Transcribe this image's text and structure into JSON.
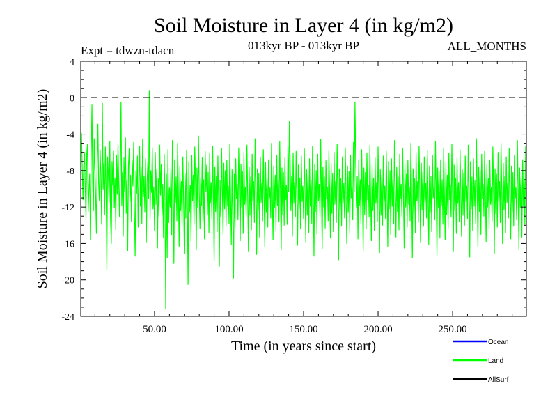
{
  "chart_data": {
    "type": "line",
    "title": "Soil Moisture in Layer 4 (in kg/m2)",
    "subtitle_left": "Expt = tdwzn-tdacn",
    "subtitle_center": "013kyr BP - 013kyr BP",
    "subtitle_right": "ALL_MONTHS",
    "xlabel": "Time (in years since start)",
    "ylabel": "Soil Moisture in Layer 4 (in kg/m2)",
    "xlim": [
      0.5,
      299.5
    ],
    "ylim": [
      -24,
      4
    ],
    "x_ticks": [
      50,
      100,
      150,
      200,
      250
    ],
    "x_tick_labels": [
      "50.00",
      "100.00",
      "150.00",
      "200.00",
      "250.00"
    ],
    "y_ticks": [
      4,
      0,
      -4,
      -8,
      -12,
      -16,
      -20,
      -24
    ],
    "y_tick_labels": [
      "4",
      "0",
      "-4",
      "-8",
      "-12",
      "-16",
      "-20",
      "-24"
    ],
    "reference_line": 0,
    "series": [
      {
        "name": "Land",
        "color": "#00ff00",
        "x_start": 0.5,
        "x_step": 0.5,
        "values": [
          -3.6,
          -4.0,
          -7.9,
          -11.2,
          -7.5,
          -6.0,
          -9.8,
          -13.2,
          -6.2,
          -5.1,
          -12.5,
          -10.0,
          -8.4,
          -15.6,
          -6.1,
          -0.8,
          -9.2,
          -12.4,
          -4.5,
          -7.8,
          -10.8,
          -14.9,
          -6.8,
          -2.9,
          -9.5,
          -11.3,
          -5.8,
          -8.7,
          -13.9,
          -0.6,
          -10.1,
          -7.2,
          -12.8,
          -5.4,
          -9.9,
          -18.9,
          -6.5,
          -8.3,
          -11.6,
          -4.8,
          -13.4,
          -16.0,
          -7.0,
          -9.6,
          -5.9,
          -12.1,
          -8.8,
          -14.5,
          -6.3,
          -10.6,
          -5.1,
          -9.4,
          -13.1,
          -7.7,
          -0.5,
          -11.8,
          -8.2,
          -15.2,
          -6.6,
          -10.3,
          -4.4,
          -12.7,
          -9.0,
          -16.8,
          -7.4,
          -5.6,
          -11.4,
          -8.5,
          -13.6,
          -6.9,
          -9.7,
          -4.9,
          -12.3,
          -17.4,
          -8.1,
          -10.5,
          -6.4,
          -14.2,
          -9.1,
          -5.3,
          -11.9,
          -7.6,
          -13.8,
          -4.6,
          -10.9,
          -8.6,
          -12.6,
          -6.7,
          -15.9,
          -9.3,
          -7.1,
          -11.1,
          0.8,
          -13.3,
          -8.0,
          -10.4,
          -5.5,
          -12.2,
          -9.8,
          -14.6,
          -6.0,
          -11.7,
          -7.9,
          -16.5,
          -8.9,
          -13.0,
          -5.2,
          -10.7,
          -7.3,
          -12.9,
          -9.5,
          -15.4,
          -6.2,
          -11.2,
          -23.2,
          -8.4,
          -17.6,
          -5.7,
          -13.7,
          -9.9,
          -12.0,
          -7.8,
          -15.1,
          -4.7,
          -10.0,
          -18.2,
          -6.8,
          -11.5,
          -8.7,
          -13.5,
          -5.0,
          -10.2,
          -16.3,
          -7.5,
          -12.4,
          -9.2,
          -14.0,
          -6.5,
          -11.0,
          -17.1,
          -8.3,
          -13.2,
          -5.8,
          -10.8,
          -20.5,
          -7.0,
          -12.6,
          -9.6,
          -15.8,
          -6.3,
          -11.3,
          -8.5,
          -13.9,
          -5.4,
          -9.4,
          -16.7,
          -7.7,
          -12.1,
          -4.2,
          -10.6,
          -14.4,
          -8.8,
          -11.8,
          -6.6,
          -13.6,
          -9.0,
          -15.5,
          -5.9,
          -10.3,
          -7.4,
          -12.8,
          -8.2,
          -14.8,
          -6.1,
          -11.6,
          -9.3,
          -13.3,
          -5.3,
          -10.9,
          -17.9,
          -7.6,
          -12.5,
          -8.6,
          -14.7,
          -6.4,
          -11.4,
          -18.5,
          -9.1,
          -13.1,
          -5.6,
          -10.1,
          -15.0,
          -7.2,
          -12.2,
          -8.0,
          -14.1,
          -6.9,
          -11.9,
          -9.7,
          -13.8,
          -5.1,
          -10.5,
          -16.1,
          -7.9,
          -12.7,
          -19.8,
          -8.4,
          -14.3,
          -6.7,
          -11.1,
          -9.5,
          -13.4,
          -5.5,
          -10.4,
          -15.7,
          -7.3,
          -12.0,
          -8.1,
          -14.9,
          -6.0,
          -11.7,
          -9.8,
          -13.0,
          -5.2,
          -10.7,
          -16.9,
          -7.6,
          -12.9,
          -8.7,
          -14.5,
          -6.2,
          -11.3,
          -9.2,
          -13.7,
          -4.5,
          -10.0,
          -17.2,
          -7.8,
          -12.3,
          -8.3,
          -15.3,
          -6.5,
          -11.5,
          -9.4,
          -13.5,
          -5.7,
          -10.8,
          -16.4,
          -7.1,
          -12.6,
          -8.9,
          -14.2,
          -6.8,
          -11.0,
          -9.9,
          -13.2,
          -5.0,
          -10.2,
          -15.6,
          -7.5,
          -12.1,
          -8.5,
          -14.6,
          -6.3,
          -11.8,
          -9.0,
          -13.6,
          -4.8,
          -10.6,
          -16.7,
          -7.7,
          -12.8,
          -8.2,
          -14.0,
          -6.6,
          -11.2,
          -9.6,
          -13.9,
          -5.4,
          -10.3,
          -2.6,
          -7.0,
          -12.4,
          -8.6,
          -15.2,
          -6.1,
          -11.6,
          -9.3,
          -13.1,
          -5.9,
          -10.9,
          -16.2,
          -7.4,
          -12.2,
          -8.8,
          -14.4,
          -6.4,
          -11.4,
          -9.7,
          -13.3,
          -5.6,
          -10.5,
          -15.9,
          -7.9,
          -12.9,
          -8.4,
          -14.8,
          -6.7,
          -11.9,
          -9.1,
          -13.8,
          -5.3,
          -10.1,
          -17.4,
          -7.3,
          -12.5,
          -8.0,
          -15.0,
          -6.2,
          -11.3,
          -9.5,
          -13.0,
          -4.6,
          -10.7,
          -16.6,
          -7.6,
          -12.0,
          -8.7,
          -14.3,
          -6.9,
          -11.1,
          -9.8,
          -13.5,
          -5.8,
          -10.4,
          -15.4,
          -7.2,
          -12.7,
          -8.3,
          -14.7,
          -6.0,
          -11.7,
          -9.2,
          -13.7,
          -5.1,
          -10.0,
          -17.8,
          -7.8,
          -12.3,
          -8.9,
          -14.1,
          -6.5,
          -11.5,
          -9.4,
          -13.2,
          -5.5,
          -10.8,
          -16.0,
          -7.5,
          -12.6,
          -8.1,
          -14.9,
          -6.3,
          -11.0,
          -9.9,
          -13.4,
          -4.9,
          -10.3,
          -0.5,
          -7.1,
          -12.1,
          -8.6,
          -15.5,
          -6.8,
          -11.8,
          -9.0,
          -13.9,
          -5.7,
          -10.6,
          -16.8,
          -7.7,
          -12.8,
          -8.2,
          -14.4,
          -6.1,
          -11.2,
          -9.6,
          -13.1,
          -5.2,
          -10.9,
          -15.7,
          -7.4,
          -12.4,
          -8.8,
          -14.6,
          -6.6,
          -11.6,
          -9.3,
          -13.6,
          -5.4,
          -10.2,
          -17.0,
          -7.9,
          -12.9,
          -8.5,
          -14.0,
          -6.4,
          -11.4,
          -9.7,
          -13.3,
          -5.9,
          -10.5,
          -16.3,
          -7.0,
          -12.2,
          -8.0,
          -15.1,
          -6.7,
          -11.9,
          -9.1,
          -13.8,
          -4.7,
          -10.1,
          -15.3,
          -7.6,
          -12.5,
          -8.7,
          -14.5,
          -6.2,
          -11.1,
          -9.5,
          -13.0,
          -5.6,
          -10.7,
          -16.5,
          -7.3,
          -12.0,
          -8.4,
          -14.2,
          -6.9,
          -11.7,
          -9.8,
          -13.5,
          -5.0,
          -10.4,
          -17.6,
          -7.8,
          -12.7,
          -8.9,
          -14.8,
          -6.0,
          -11.3,
          -9.2,
          -13.7,
          -5.3,
          -10.0,
          -15.9,
          -7.2,
          -12.3,
          -8.2,
          -14.1,
          -6.5,
          -11.5,
          -9.4,
          -13.2,
          -5.8,
          -10.8,
          -16.1,
          -7.5,
          -12.6,
          -8.6,
          -14.7,
          -6.3,
          -11.0,
          -9.9,
          -13.4,
          -4.8,
          -10.3,
          -17.3,
          -7.7,
          -12.1,
          -8.1,
          -15.4,
          -6.8,
          -11.8,
          -9.0,
          -13.9,
          -5.5,
          -10.6,
          -15.6,
          -7.1,
          -12.8,
          -8.5,
          -14.3,
          -6.1,
          -11.2,
          -9.6,
          -13.1,
          -5.1,
          -10.9,
          -16.9,
          -7.4,
          -12.4,
          -8.8,
          -14.9,
          -6.6,
          -11.6,
          -9.3,
          -13.6,
          -5.7,
          -10.2,
          -15.2,
          -7.9,
          -12.9,
          -8.3,
          -14.0,
          -6.4,
          -11.4,
          -9.7,
          -13.3,
          -5.2,
          -10.5,
          -17.5,
          -7.0,
          -12.2,
          -8.7,
          -14.6,
          -6.7,
          -11.9,
          -9.1,
          -13.8,
          -4.5,
          -10.1,
          -16.4,
          -7.6,
          -12.5,
          -8.0,
          -15.0,
          -6.2,
          -11.1,
          -9.5,
          -13.0,
          -5.9,
          -10.7,
          -15.8,
          -7.3,
          -12.0,
          -8.9,
          -14.4,
          -6.9,
          -11.7,
          -9.8,
          -13.5,
          -5.4,
          -10.4,
          -17.1,
          -7.8,
          -12.7,
          -8.4,
          -14.2,
          -6.0,
          -11.3,
          -9.2,
          -13.7,
          -5.0,
          -10.0,
          -16.0,
          -7.2,
          -12.3,
          -8.6,
          -14.8,
          -6.5,
          -11.5,
          -9.4,
          -13.2,
          -5.6,
          -10.8,
          -15.5,
          -7.5,
          -12.6,
          -8.2,
          -14.1,
          -6.3,
          -11.0,
          -9.9,
          -13.4,
          -4.7,
          -10.3,
          -16.7,
          -7.7,
          -12.1,
          -8.8,
          -15.3,
          -6.8,
          -11.8,
          -9.0,
          -13.9,
          -5.3,
          -10.6
        ]
      },
      {
        "name": "Ocean",
        "color": "#0000ff",
        "values": []
      },
      {
        "name": "AllSurf",
        "color": "#000000",
        "values": []
      }
    ],
    "legend": {
      "placement": "bottom-right",
      "entries": [
        {
          "label": "Ocean",
          "color": "#0000ff"
        },
        {
          "label": "Land",
          "color": "#00ff00"
        },
        {
          "label": "AllSurf",
          "color": "#000000"
        }
      ]
    }
  }
}
